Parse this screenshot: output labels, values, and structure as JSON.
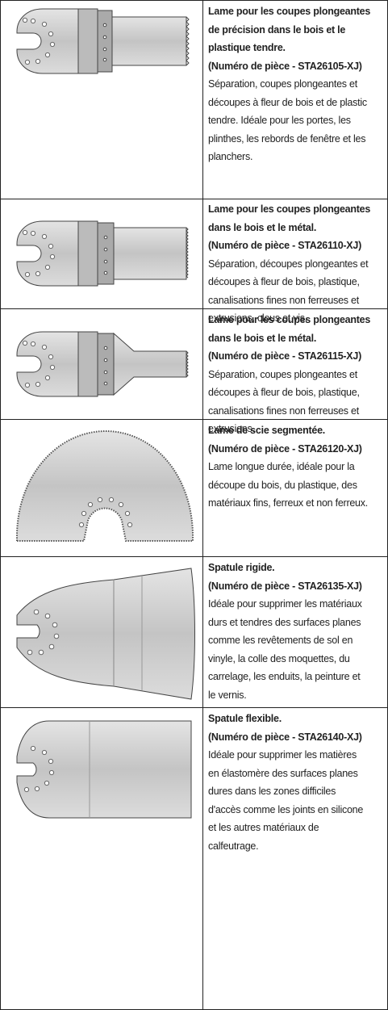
{
  "rows": [
    {
      "title_lines": [
        "Lame pour les coupes plongeantes",
        "de précision dans le bois et le",
        "plastique tendre."
      ],
      "part": "(Numéro de pièce - STA26105-XJ)",
      "description_lines": [
        "Séparation, coupes plongeantes et",
        "découpes à fleur de bois et de plastic",
        "tendre. Idéale pour les portes, les",
        "plinthes, les rebords de fenêtre et les",
        "planchers."
      ]
    },
    {
      "title_lines": [
        "Lame pour les coupes plongeantes",
        "dans le bois et le métal."
      ],
      "part": "(Numéro de pièce - STA26110-XJ)",
      "description_lines": [
        "Séparation, découpes plongeantes et",
        "découpes à fleur de bois, plastique,",
        "canalisations fines non ferreuses et",
        "extrusions, clous et vis."
      ]
    },
    {
      "title_lines": [
        "Lame pour les coupes plongeantes",
        "dans le bois et le métal."
      ],
      "part": "(Numéro de pièce - STA26115-XJ)",
      "description_lines": [
        "Séparation, coupes plongeantes et",
        "découpes à fleur de bois, plastique,",
        "canalisations fines non ferreuses et",
        "extrusions."
      ]
    },
    {
      "title_lines": [
        "Lame de scie segmentée."
      ],
      "part": "(Numéro de pièce - STA26120-XJ)",
      "description_lines": [
        "Lame longue durée, idéale pour la",
        "découpe du bois, du plastique, des",
        "matériaux fins, ferreux et non ferreux."
      ]
    },
    {
      "title_lines": [
        "Spatule rigide."
      ],
      "part": "(Numéro de pièce - STA26135-XJ)",
      "description_lines": [
        "Idéale pour supprimer les matériaux",
        "durs et tendres des surfaces planes",
        "comme les revêtements de sol en",
        "vinyle, la colle des moquettes, du",
        "carrelage, les enduits, la peinture et",
        "le vernis."
      ]
    },
    {
      "title_lines": [
        "Spatule flexible."
      ],
      "part": "(Numéro de pièce - STA26140-XJ)",
      "description_lines": [
        "Idéale pour supprimer les matières",
        "en élastomère des surfaces planes",
        "dures dans les zones difficiles",
        "d'accès comme les joints en silicone",
        "et les autres matériaux de",
        "calfeutrage."
      ]
    }
  ]
}
